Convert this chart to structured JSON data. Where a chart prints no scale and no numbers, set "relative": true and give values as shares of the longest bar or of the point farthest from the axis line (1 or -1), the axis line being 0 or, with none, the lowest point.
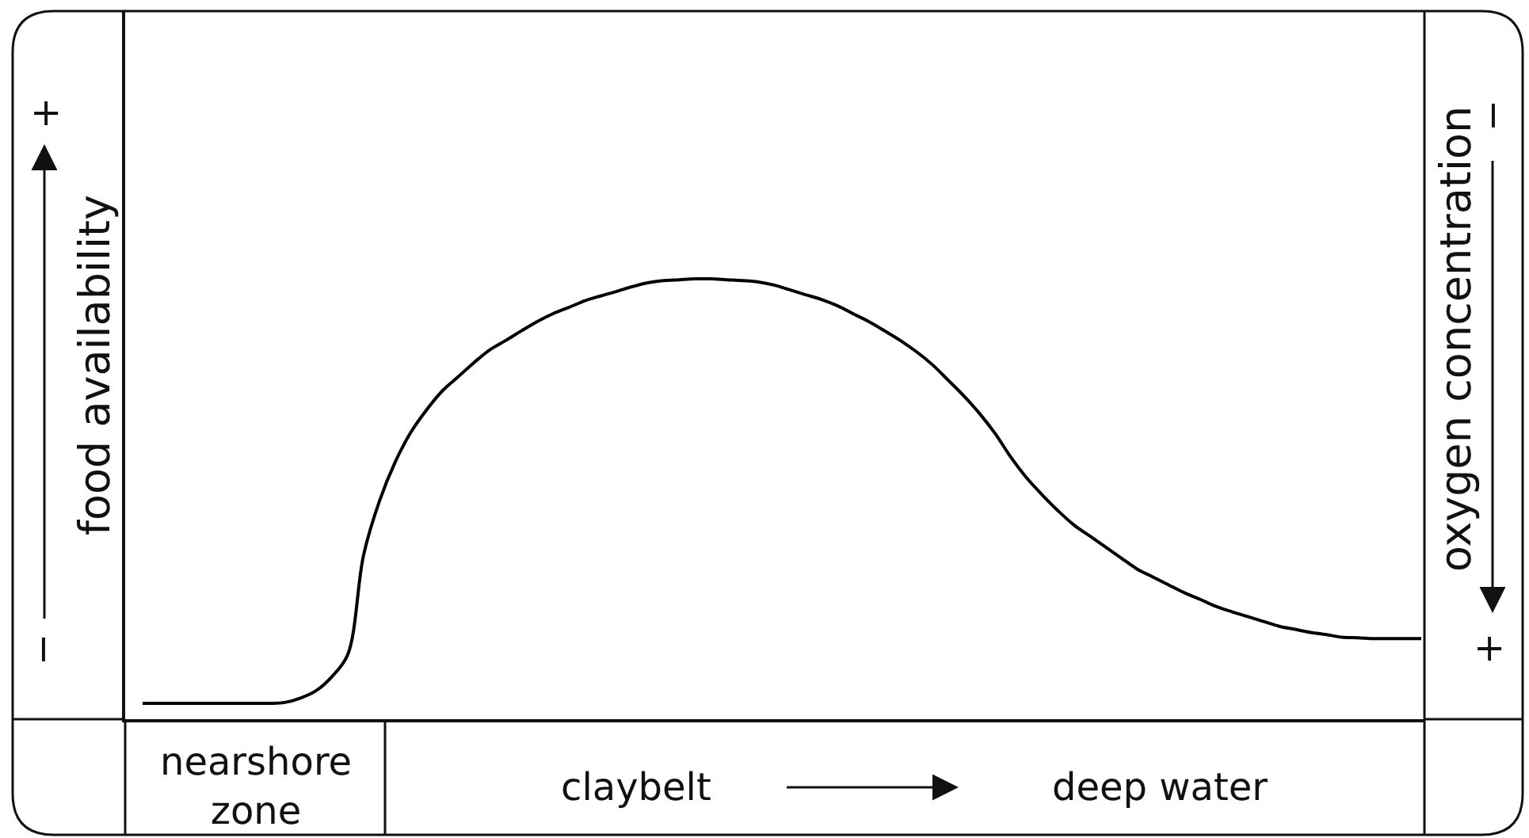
{
  "chart_data": {
    "type": "line",
    "relative": true,
    "color": "#000000",
    "ylabel": "food availability",
    "y2label": "oxygen concentration",
    "annotations": [
      "+",
      "−",
      "−",
      "+",
      "nearshore\nzone",
      "claybelt",
      "deep water"
    ],
    "categories": [
      null,
      null,
      null,
      null,
      null,
      null,
      null,
      null,
      null,
      null,
      null,
      null,
      null,
      null,
      null,
      null,
      null,
      null,
      null,
      null,
      null,
      null,
      null,
      null,
      null,
      null,
      null,
      null,
      null,
      null,
      null,
      null,
      null,
      null,
      null,
      null,
      null,
      null,
      null,
      null,
      null,
      null,
      null,
      null,
      null,
      null,
      null,
      null,
      null,
      null,
      null,
      null,
      null,
      null,
      null,
      null,
      null,
      null,
      null,
      null,
      null,
      null,
      null,
      null,
      null,
      null,
      null,
      null,
      null,
      null,
      null,
      null,
      null,
      null,
      null,
      null,
      null,
      null,
      null,
      null,
      null,
      null
    ],
    "values": [
      0.036,
      0.036,
      0.036,
      0.036,
      0.036,
      0.036,
      0.036,
      0.036,
      0.036,
      0.038,
      0.048,
      0.065,
      0.097,
      0.147,
      0.373,
      0.495,
      0.584,
      0.652,
      0.703,
      0.746,
      0.778,
      0.81,
      0.839,
      0.86,
      0.882,
      0.903,
      0.921,
      0.935,
      0.95,
      0.961,
      0.971,
      0.982,
      0.991,
      0.996,
      0.998,
      1.0,
      1.0,
      0.998,
      0.996,
      0.993,
      0.986,
      0.975,
      0.964,
      0.953,
      0.939,
      0.921,
      0.903,
      0.882,
      0.86,
      0.835,
      0.806,
      0.771,
      0.735,
      0.695,
      0.649,
      0.595,
      0.548,
      0.509,
      0.473,
      0.441,
      0.416,
      0.391,
      0.366,
      0.341,
      0.323,
      0.305,
      0.287,
      0.272,
      0.256,
      0.244,
      0.233,
      0.222,
      0.211,
      0.204,
      0.197,
      0.192,
      0.186,
      0.185,
      0.183,
      0.183,
      0.183,
      0.183
    ]
  }
}
